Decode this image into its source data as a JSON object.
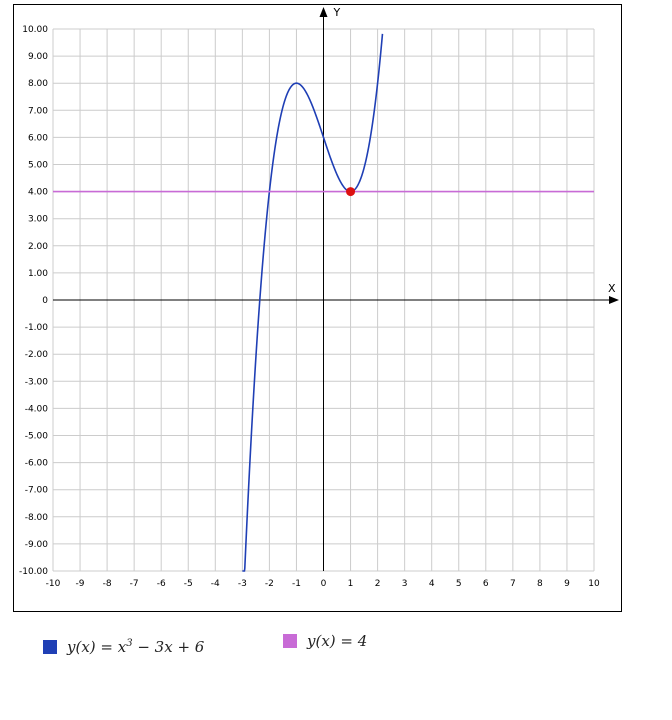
{
  "chart_data": {
    "type": "line",
    "xlabel": "X",
    "ylabel": "Y",
    "xlim": [
      -10,
      10
    ],
    "ylim": [
      -10,
      10
    ],
    "grid": true,
    "legend_position": "bottom",
    "x_ticks": [
      "-10",
      "-9",
      "-8",
      "-7",
      "-6",
      "-5",
      "-4",
      "-3",
      "-2",
      "-1",
      "0",
      "1",
      "2",
      "3",
      "4",
      "5",
      "6",
      "7",
      "8",
      "9",
      "10"
    ],
    "y_ticks": [
      "10.00",
      "9.00",
      "8.00",
      "7.00",
      "6.00",
      "5.00",
      "4.00",
      "3.00",
      "2.00",
      "1.00",
      "0",
      "-1.00",
      "-2.00",
      "-3.00",
      "-4.00",
      "-5.00",
      "-6.00",
      "-7.00",
      "-8.00",
      "-9.00",
      "-10.00"
    ],
    "series": [
      {
        "name": "y(x) = x³ − 3x + 6",
        "color": "#1f3fb5",
        "formula": "x^3 - 3x + 6",
        "x_range": [
          -3,
          2.18
        ]
      },
      {
        "name": "y(x) = 4",
        "color": "#c86bd6",
        "formula": "4",
        "x_range": [
          -10,
          10
        ]
      }
    ],
    "points": [
      {
        "x": 1,
        "y": 4,
        "color": "#dd1111"
      }
    ]
  },
  "legend": {
    "item1": {
      "prefix": "y(x) = x",
      "exponent": "3",
      "suffix": " − 3x + 6"
    },
    "item2": {
      "text": "y(x) = 4"
    }
  }
}
